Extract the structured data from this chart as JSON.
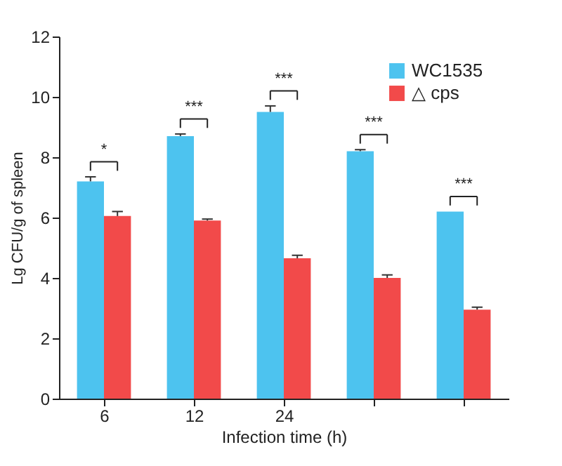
{
  "chart_data": {
    "type": "bar",
    "xlabel": "Infection time (h)",
    "ylabel": "Lg CFU/g of spleen",
    "categories": [
      "6",
      "12",
      "24",
      null,
      null
    ],
    "series": [
      {
        "name": "WC1535",
        "color": "#4dc3ef",
        "values": [
          7.2,
          8.7,
          9.5,
          8.2,
          6.2
        ],
        "errors": [
          0.15,
          0.07,
          0.2,
          0.05,
          null
        ]
      },
      {
        "name": "△ cps",
        "color": "#f24a4a",
        "values": [
          6.05,
          5.9,
          4.65,
          4.0,
          2.95
        ],
        "errors": [
          0.15,
          0.05,
          0.1,
          0.1,
          0.08
        ]
      }
    ],
    "ylim": [
      0,
      12
    ],
    "yticks": [
      0,
      2,
      4,
      6,
      8,
      10,
      12
    ],
    "grid": false,
    "legend": "top right",
    "annotations": [
      "*",
      "***",
      "***",
      "***",
      "***"
    ]
  }
}
